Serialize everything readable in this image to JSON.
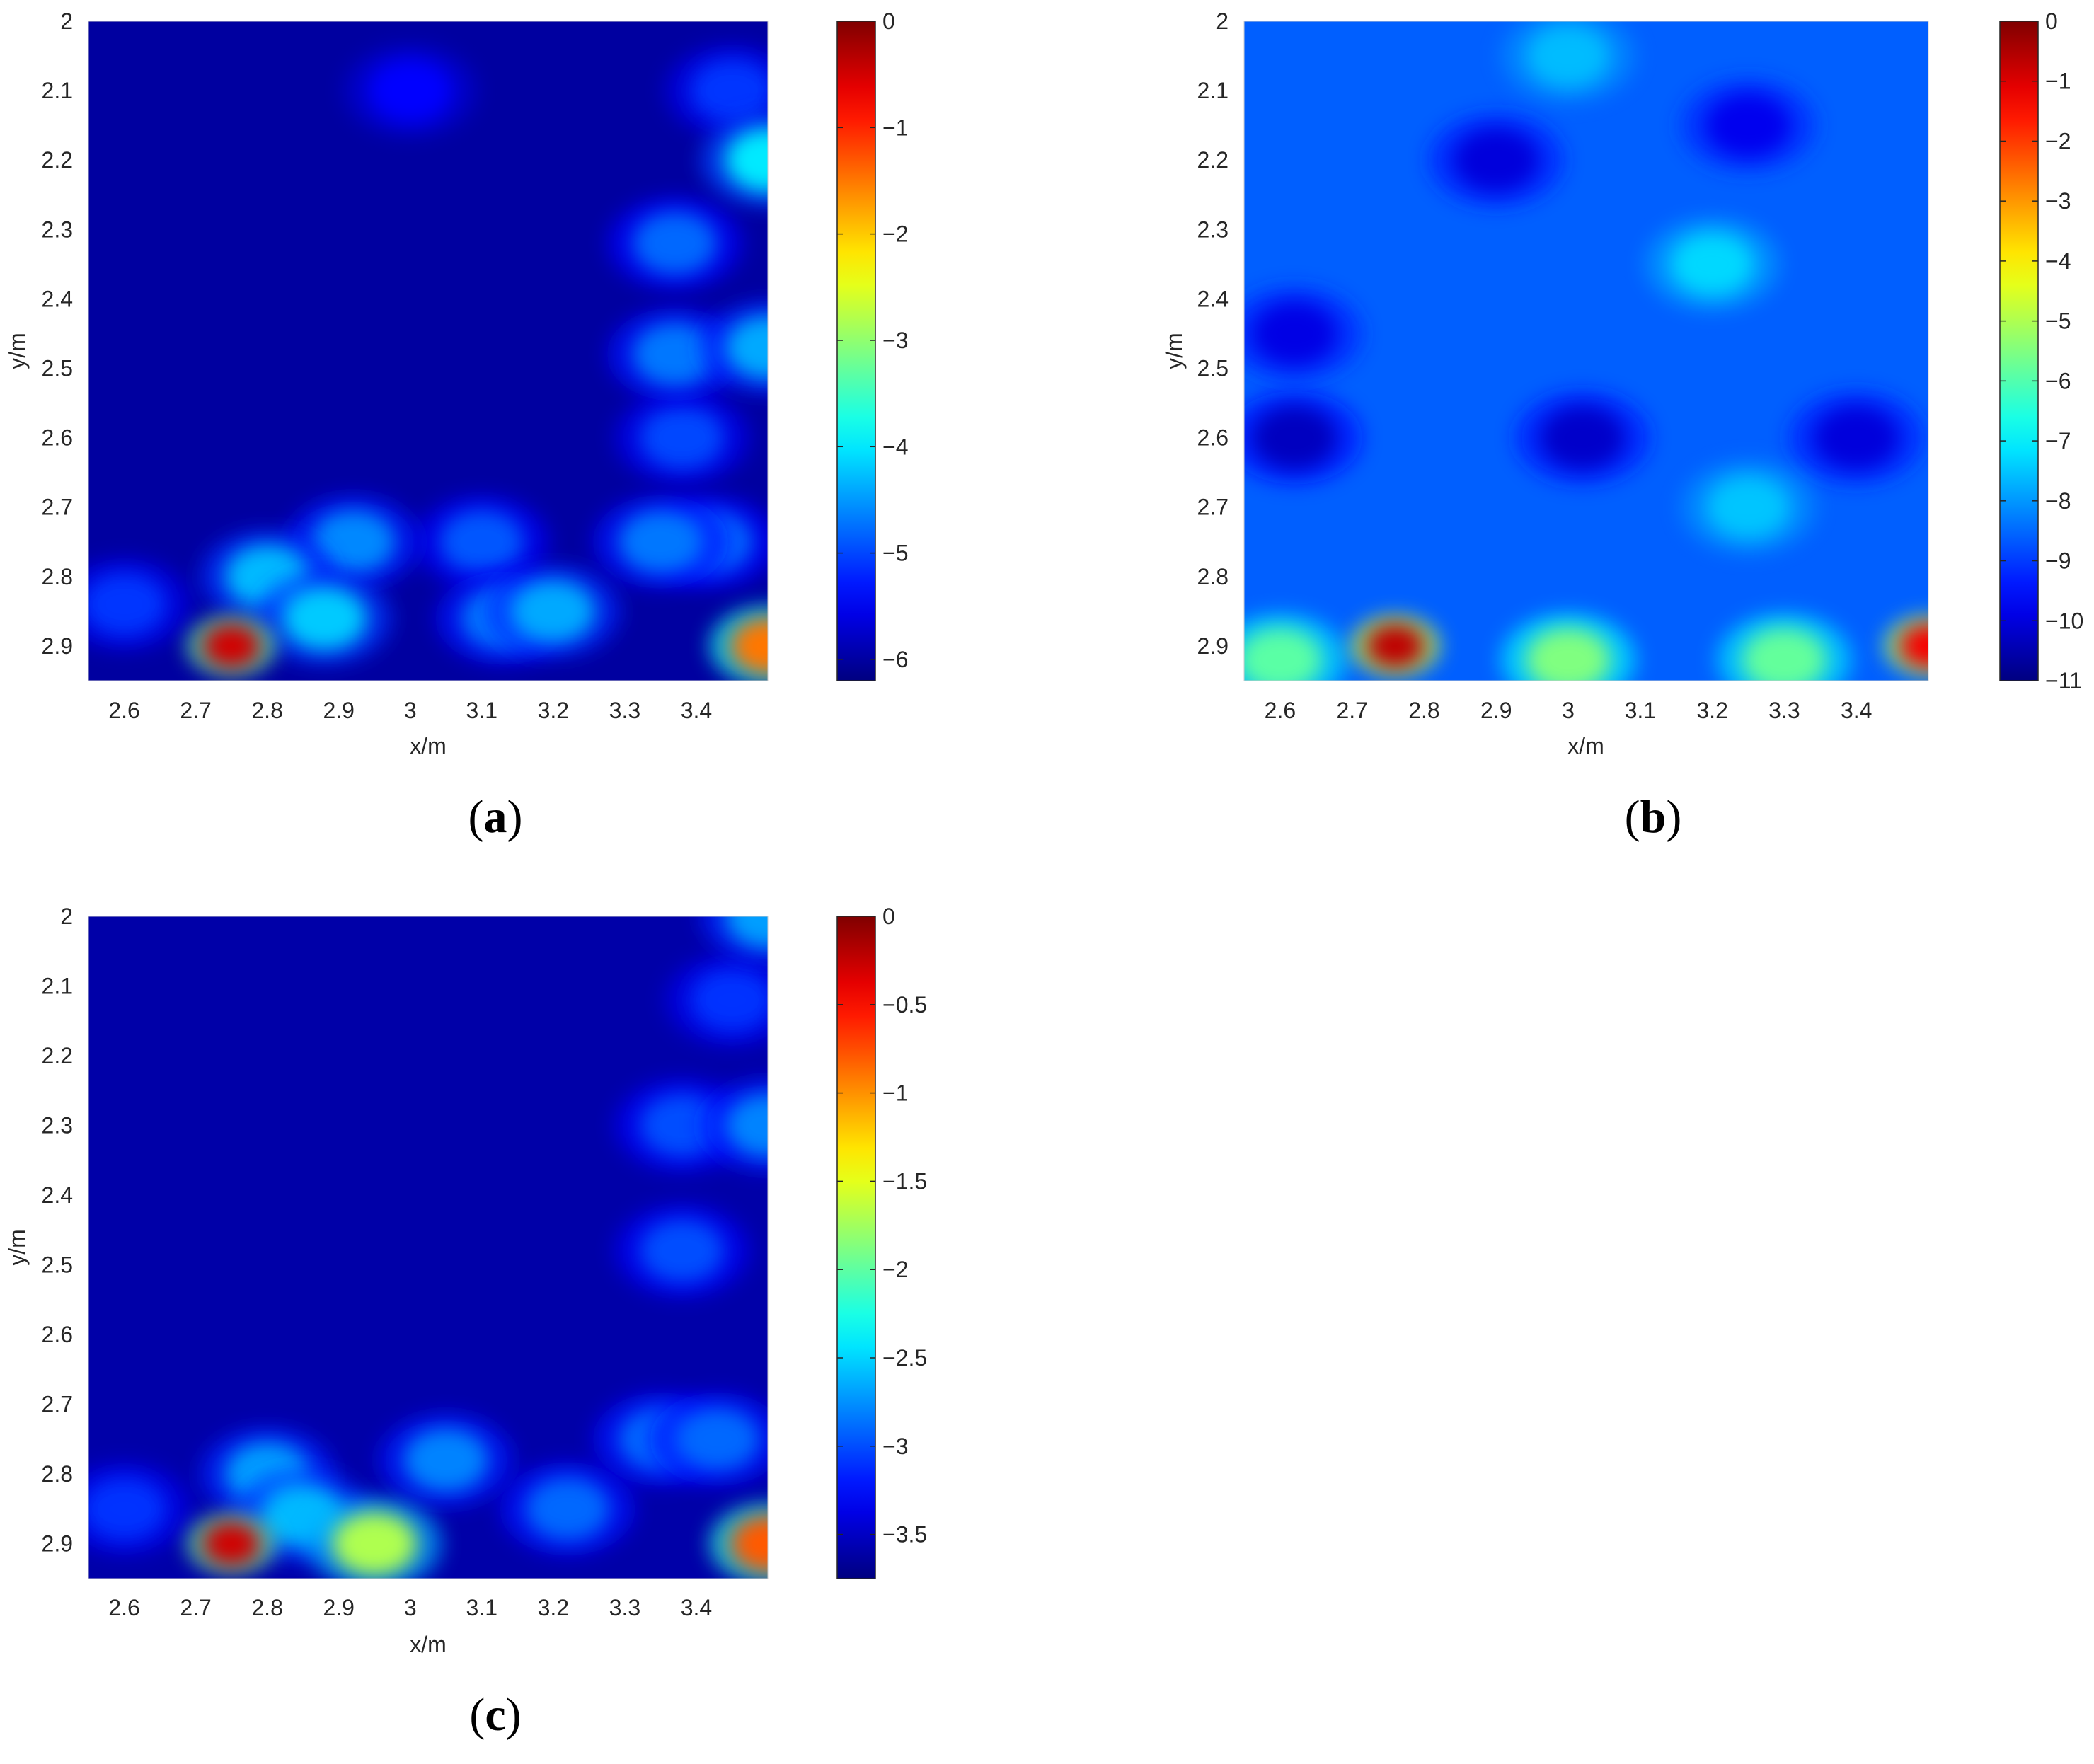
{
  "chart_data": [
    {
      "type": "heatmap",
      "panel_label": "a",
      "xlabel": "x/m",
      "ylabel": "y/m",
      "xlim": [
        2.55,
        3.5
      ],
      "ylim": [
        2.0,
        2.95
      ],
      "y_reversed": true,
      "x_ticks": [
        "2.6",
        "2.7",
        "2.8",
        "2.9",
        "3",
        "3.1",
        "3.2",
        "3.3",
        "3.4"
      ],
      "y_ticks": [
        "2",
        "2.1",
        "2.2",
        "2.3",
        "2.4",
        "2.5",
        "2.6",
        "2.7",
        "2.8",
        "2.9"
      ],
      "colorbar": {
        "range": [
          -6.2,
          0
        ],
        "ticks": [
          "0",
          "−1",
          "−2",
          "−3",
          "−4",
          "−5",
          "−6"
        ],
        "colormap": "jet"
      },
      "background_level": -6.0,
      "features": [
        {
          "x": 2.75,
          "y": 2.9,
          "value": -0.5
        },
        {
          "x": 3.5,
          "y": 2.9,
          "value": -1.5
        },
        {
          "x": 2.8,
          "y": 2.8,
          "value": -4.3
        },
        {
          "x": 2.88,
          "y": 2.86,
          "value": -4.2
        },
        {
          "x": 2.92,
          "y": 2.75,
          "value": -4.6
        },
        {
          "x": 3.2,
          "y": 2.85,
          "value": -4.4
        },
        {
          "x": 3.13,
          "y": 2.86,
          "value": -4.7
        },
        {
          "x": 3.1,
          "y": 2.75,
          "value": -4.9
        },
        {
          "x": 3.35,
          "y": 2.75,
          "value": -4.7
        },
        {
          "x": 3.42,
          "y": 2.75,
          "value": -4.8
        },
        {
          "x": 2.6,
          "y": 2.84,
          "value": -5.1
        },
        {
          "x": 3.5,
          "y": 2.2,
          "value": -4.0
        },
        {
          "x": 3.5,
          "y": 2.47,
          "value": -4.4
        },
        {
          "x": 3.37,
          "y": 2.48,
          "value": -4.7
        },
        {
          "x": 3.37,
          "y": 2.32,
          "value": -4.8
        },
        {
          "x": 3.38,
          "y": 2.6,
          "value": -5.0
        },
        {
          "x": 3.45,
          "y": 2.1,
          "value": -5.1
        },
        {
          "x": 3.0,
          "y": 2.1,
          "value": -5.4
        }
      ]
    },
    {
      "type": "heatmap",
      "panel_label": "b",
      "xlabel": "x/m",
      "ylabel": "y/m",
      "xlim": [
        2.55,
        3.5
      ],
      "ylim": [
        2.0,
        2.95
      ],
      "y_reversed": true,
      "x_ticks": [
        "2.6",
        "2.7",
        "2.8",
        "2.9",
        "3",
        "3.1",
        "3.2",
        "3.3",
        "3.4"
      ],
      "y_ticks": [
        "2",
        "2.1",
        "2.2",
        "2.3",
        "2.4",
        "2.5",
        "2.6",
        "2.7",
        "2.8",
        "2.9"
      ],
      "colorbar": {
        "range": [
          -11,
          0
        ],
        "ticks": [
          "0",
          "−1",
          "−2",
          "−3",
          "−4",
          "−5",
          "−6",
          "−7",
          "−8",
          "−9",
          "−10",
          "−11"
        ],
        "colormap": "jet"
      },
      "background_level": -8.6,
      "features": [
        {
          "x": 2.76,
          "y": 2.9,
          "value": -0.7
        },
        {
          "x": 3.5,
          "y": 2.9,
          "value": -1.3
        },
        {
          "x": 3.0,
          "y": 2.92,
          "value": -5.5
        },
        {
          "x": 3.3,
          "y": 2.92,
          "value": -5.8
        },
        {
          "x": 2.6,
          "y": 2.92,
          "value": -5.9
        },
        {
          "x": 3.2,
          "y": 2.35,
          "value": -7.3
        },
        {
          "x": 3.0,
          "y": 2.05,
          "value": -7.6
        },
        {
          "x": 3.25,
          "y": 2.7,
          "value": -7.5
        },
        {
          "x": 2.62,
          "y": 2.6,
          "value": -10.3
        },
        {
          "x": 3.02,
          "y": 2.6,
          "value": -10.2
        },
        {
          "x": 3.4,
          "y": 2.6,
          "value": -10.0
        },
        {
          "x": 2.9,
          "y": 2.2,
          "value": -10.0
        },
        {
          "x": 3.25,
          "y": 2.15,
          "value": -9.8
        },
        {
          "x": 2.62,
          "y": 2.45,
          "value": -9.9
        }
      ]
    },
    {
      "type": "heatmap",
      "panel_label": "c",
      "xlabel": "x/m",
      "ylabel": "y/m",
      "xlim": [
        2.55,
        3.5
      ],
      "ylim": [
        2.0,
        2.95
      ],
      "y_reversed": true,
      "x_ticks": [
        "2.6",
        "2.7",
        "2.8",
        "2.9",
        "3",
        "3.1",
        "3.2",
        "3.3",
        "3.4"
      ],
      "y_ticks": [
        "2",
        "2.1",
        "2.2",
        "2.3",
        "2.4",
        "2.5",
        "2.6",
        "2.7",
        "2.8",
        "2.9"
      ],
      "colorbar": {
        "range": [
          -3.75,
          0
        ],
        "ticks": [
          "0",
          "−0.5",
          "−1",
          "−1.5",
          "−2",
          "−2.5",
          "−3",
          "−3.5"
        ],
        "colormap": "jet"
      },
      "background_level": -3.6,
      "features": [
        {
          "x": 2.75,
          "y": 2.9,
          "value": -0.3
        },
        {
          "x": 3.5,
          "y": 2.9,
          "value": -0.8
        },
        {
          "x": 2.95,
          "y": 2.9,
          "value": -1.7
        },
        {
          "x": 2.85,
          "y": 2.86,
          "value": -2.6
        },
        {
          "x": 2.8,
          "y": 2.8,
          "value": -2.7
        },
        {
          "x": 3.05,
          "y": 2.78,
          "value": -2.8
        },
        {
          "x": 3.22,
          "y": 2.85,
          "value": -2.9
        },
        {
          "x": 3.35,
          "y": 2.75,
          "value": -2.9
        },
        {
          "x": 3.43,
          "y": 2.75,
          "value": -2.9
        },
        {
          "x": 2.6,
          "y": 2.85,
          "value": -3.1
        },
        {
          "x": 3.5,
          "y": 2.3,
          "value": -2.8
        },
        {
          "x": 3.5,
          "y": 2.0,
          "value": -2.7
        },
        {
          "x": 3.38,
          "y": 2.3,
          "value": -3.0
        },
        {
          "x": 3.38,
          "y": 2.48,
          "value": -3.0
        },
        {
          "x": 3.45,
          "y": 2.12,
          "value": -3.1
        }
      ]
    }
  ],
  "captions": {
    "a": "a",
    "b": "b",
    "c": "c"
  }
}
